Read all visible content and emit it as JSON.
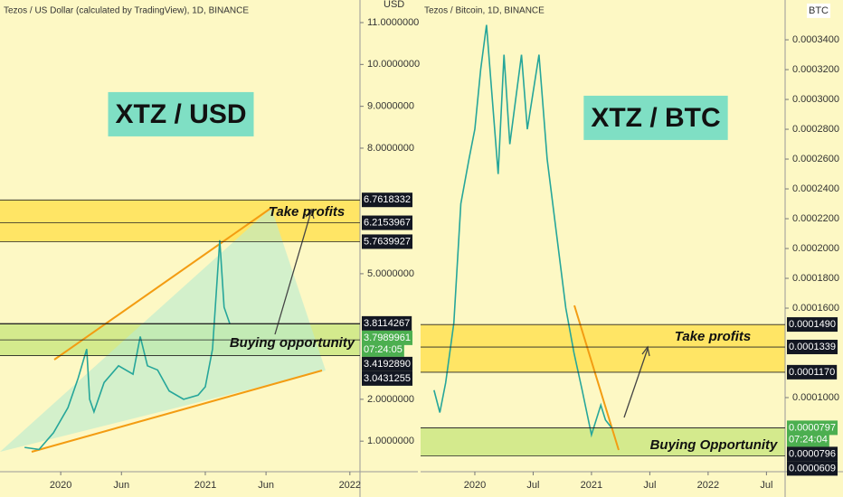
{
  "chart_data": [
    {
      "type": "line",
      "title": "Tezos / US Dollar (calculated by TradingView), 1D, BINANCE",
      "unit": "USD",
      "big_label": "XTZ / USD",
      "take_label": "Take profits",
      "buy_label": "Buying opportunity",
      "countdown": "07:24:05",
      "color": "#26a69a",
      "x": [
        2019.75,
        2019.85,
        2019.95,
        2020.05,
        2020.12,
        2020.18,
        2020.2,
        2020.23,
        2020.3,
        2020.4,
        2020.5,
        2020.55,
        2020.6,
        2020.67,
        2020.75,
        2020.85,
        2020.95,
        2021.0,
        2021.05,
        2021.1,
        2021.13,
        2021.17
      ],
      "values": [
        0.85,
        0.8,
        1.2,
        1.8,
        2.5,
        3.2,
        2.0,
        1.7,
        2.4,
        2.8,
        2.6,
        3.5,
        2.8,
        2.7,
        2.2,
        2.0,
        2.1,
        2.3,
        3.2,
        5.8,
        4.2,
        3.8
      ],
      "xlim": [
        2019.58,
        2022.07
      ],
      "ylim": [
        0.27,
        11.54
      ],
      "xticks": [
        {
          "value": 2020,
          "label": "2020"
        },
        {
          "value": 2020.42,
          "label": "Jun"
        },
        {
          "value": 2021,
          "label": "2021"
        },
        {
          "value": 2021.42,
          "label": "Jun"
        },
        {
          "value": 2022,
          "label": "2022"
        }
      ],
      "yticks": [
        {
          "value": 1,
          "label": "1.0000000"
        },
        {
          "value": 2,
          "label": "2.0000000"
        },
        {
          "value": 5,
          "label": "5.0000000"
        },
        {
          "value": 8,
          "label": "8.0000000"
        },
        {
          "value": 9,
          "label": "9.0000000"
        },
        {
          "value": 10,
          "label": "10.0000000"
        },
        {
          "value": 11,
          "label": "11.0000000"
        }
      ],
      "price_levels": [
        6.7618332,
        6.2153967,
        5.7639927,
        3.8114267,
        {
          "value": 3.419289,
          "label": "3.4192890"
        },
        3.0431255
      ],
      "last_price": 3.7989961,
      "zones": [
        {
          "from": 6.7618332,
          "to": 5.7639927,
          "color": "#ffe04d"
        },
        {
          "from": 3.8114267,
          "to": 3.0431255,
          "color": "#c9e680"
        }
      ]
    },
    {
      "type": "line",
      "title": "Tezos / Bitcoin, 1D, BINANCE",
      "unit": "BTC",
      "big_label": "XTZ / BTC",
      "take_label": "Take profits",
      "buy_label": "Buying Opportunity",
      "countdown": "07:24:04",
      "color": "#26a69a",
      "x": [
        2019.65,
        2019.7,
        2019.75,
        2019.82,
        2019.88,
        2019.95,
        2020.0,
        2020.05,
        2020.1,
        2020.15,
        2020.2,
        2020.25,
        2020.3,
        2020.4,
        2020.45,
        2020.55,
        2020.62,
        2020.7,
        2020.78,
        2020.85,
        2020.92,
        2021.0,
        2021.08,
        2021.12,
        2021.17
      ],
      "values": [
        0.000105,
        9e-05,
        0.00011,
        0.00015,
        0.00023,
        0.00026,
        0.00028,
        0.00032,
        0.00035,
        0.0003,
        0.00025,
        0.00033,
        0.00027,
        0.00033,
        0.00028,
        0.00033,
        0.00026,
        0.00021,
        0.00016,
        0.00013,
        0.000105,
        7.5e-05,
        9.5e-05,
        8.5e-05,
        8e-05
      ],
      "xlim": [
        2019.535,
        2022.66
      ],
      "ylim": [
        5.03e-05,
        0.0003667
      ],
      "xticks": [
        {
          "value": 2020,
          "label": "2020"
        },
        {
          "value": 2020.5,
          "label": "Jul"
        },
        {
          "value": 2021,
          "label": "2021"
        },
        {
          "value": 2021.5,
          "label": "Jul"
        },
        {
          "value": 2022,
          "label": "2022"
        },
        {
          "value": 2022.5,
          "label": "Jul"
        }
      ],
      "yticks": [
        {
          "value": 0.0001,
          "label": "0.0001000"
        },
        {
          "value": 0.00016,
          "label": "0.0001600"
        },
        {
          "value": 0.00018,
          "label": "0.0001800"
        },
        {
          "value": 0.0002,
          "label": "0.0002000"
        },
        {
          "value": 0.00022,
          "label": "0.0002200"
        },
        {
          "value": 0.00024,
          "label": "0.0002400"
        },
        {
          "value": 0.00026,
          "label": "0.0002600"
        },
        {
          "value": 0.00028,
          "label": "0.0002800"
        },
        {
          "value": 0.0003,
          "label": "0.0003000"
        },
        {
          "value": 0.00032,
          "label": "0.0003200"
        },
        {
          "value": 0.00034,
          "label": "0.0003400"
        }
      ],
      "price_levels": [
        {
          "value": 0.000149,
          "label": "0.0001490"
        },
        {
          "value": 0.0001339,
          "label": "0.0001339"
        },
        {
          "value": 0.000117,
          "label": "0.0001170"
        },
        {
          "value": 7.96e-05,
          "label": "0.0000796"
        },
        {
          "value": 6.09e-05,
          "label": "0.0000609"
        }
      ],
      "last_price": {
        "value": 7.97e-05,
        "label": "0.0000797"
      },
      "zones": [
        {
          "from": 0.000149,
          "to": 0.000117,
          "color": "#ffe04d"
        },
        {
          "from": 7.97e-05,
          "to": 6.09e-05,
          "color": "#c9e680"
        }
      ]
    }
  ]
}
